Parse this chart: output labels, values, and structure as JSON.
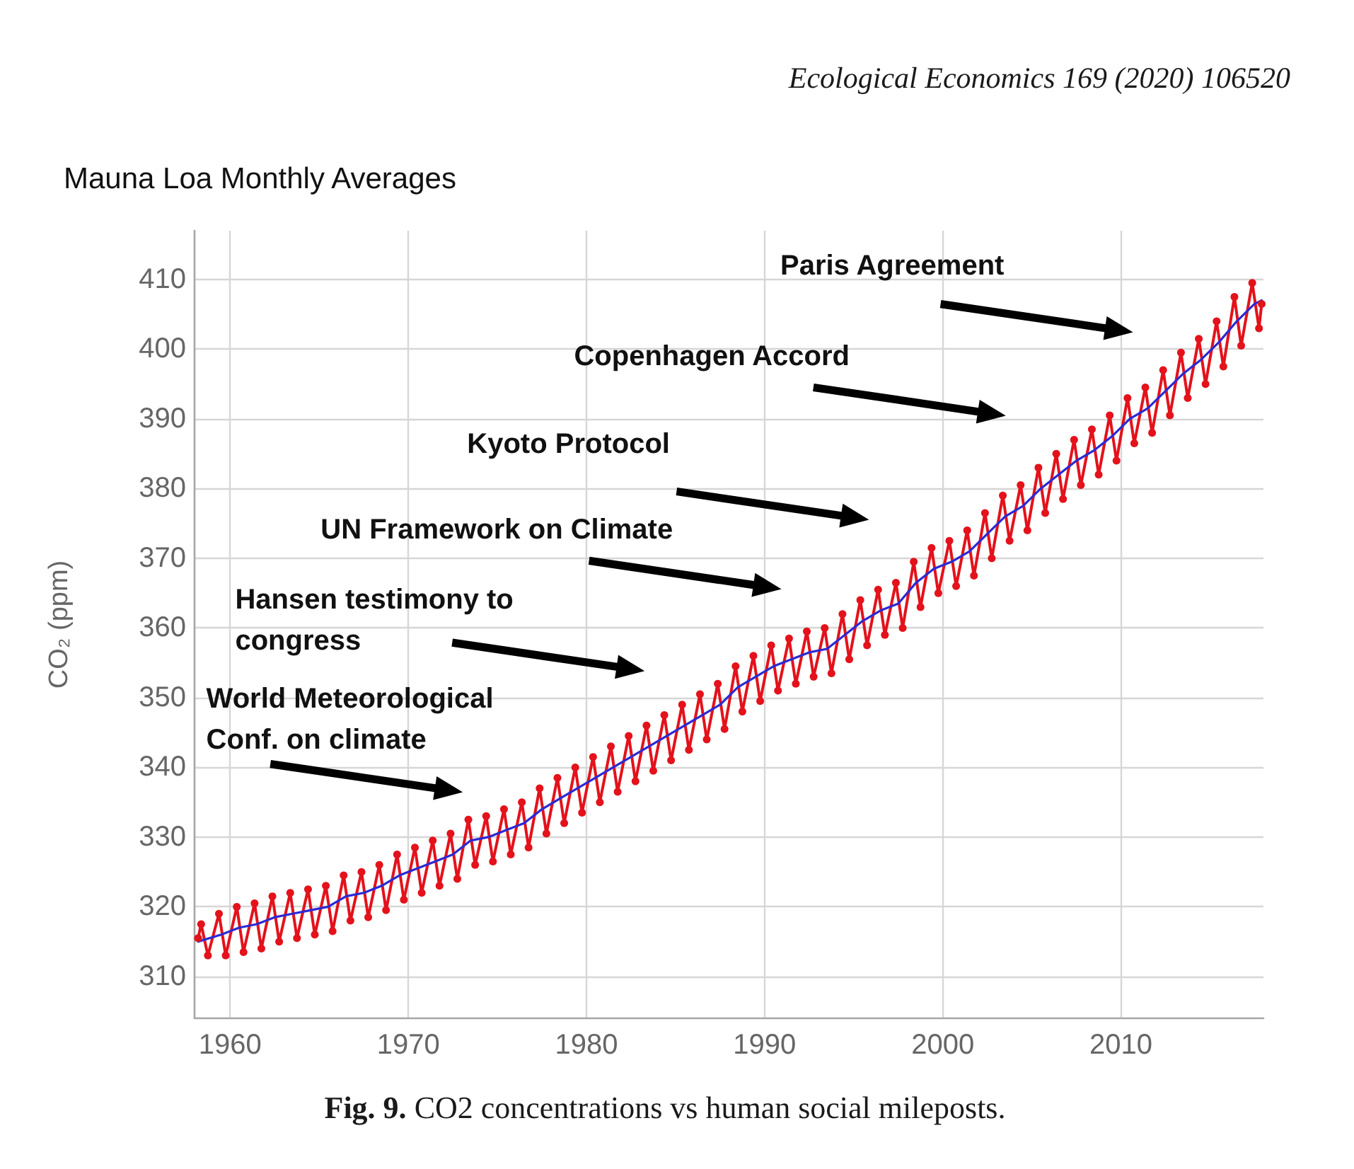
{
  "chart_data": {
    "type": "line",
    "title": "Mauna Loa Monthly Averages",
    "ylabel": "CO₂ (ppm)",
    "xlim": [
      1958,
      2018
    ],
    "xticks": [
      1960,
      1970,
      1980,
      1990,
      2000,
      2010
    ],
    "ylim": [
      304,
      417
    ],
    "yticks": [
      310,
      320,
      330,
      340,
      350,
      360,
      370,
      380,
      390,
      400,
      410
    ],
    "grid": true,
    "line_style": "solid",
    "series": [
      {
        "color": "#e3121b",
        "marker": "circle",
        "x": [
          1958.2,
          1958.37,
          1958.75,
          1959.37,
          1959.75,
          1960.37,
          1960.75,
          1961.37,
          1961.75,
          1962.37,
          1962.75,
          1963.37,
          1963.75,
          1964.37,
          1964.75,
          1965.37,
          1965.75,
          1966.37,
          1966.75,
          1967.37,
          1967.75,
          1968.37,
          1968.75,
          1969.37,
          1969.75,
          1970.37,
          1970.75,
          1971.37,
          1971.75,
          1972.37,
          1972.75,
          1973.37,
          1973.75,
          1974.37,
          1974.75,
          1975.37,
          1975.75,
          1976.37,
          1976.75,
          1977.37,
          1977.75,
          1978.37,
          1978.75,
          1979.37,
          1979.75,
          1980.37,
          1980.75,
          1981.37,
          1981.75,
          1982.37,
          1982.75,
          1983.37,
          1983.75,
          1984.37,
          1984.75,
          1985.37,
          1985.75,
          1986.37,
          1986.75,
          1987.37,
          1987.75,
          1988.37,
          1988.75,
          1989.37,
          1989.75,
          1990.37,
          1990.75,
          1991.37,
          1991.75,
          1992.37,
          1992.75,
          1993.37,
          1993.75,
          1994.37,
          1994.75,
          1995.37,
          1995.75,
          1996.37,
          1996.75,
          1997.37,
          1997.75,
          1998.37,
          1998.75,
          1999.37,
          1999.75,
          2000.37,
          2000.75,
          2001.37,
          2001.75,
          2002.37,
          2002.75,
          2003.37,
          2003.75,
          2004.37,
          2004.75,
          2005.37,
          2005.75,
          2006.37,
          2006.75,
          2007.37,
          2007.75,
          2008.37,
          2008.75,
          2009.37,
          2009.75,
          2010.37,
          2010.75,
          2011.37,
          2011.75,
          2012.37,
          2012.75,
          2013.37,
          2013.75,
          2014.37,
          2014.75,
          2015.37,
          2015.75,
          2016.37,
          2016.75,
          2017.37,
          2017.75,
          2017.9
        ],
        "values": [
          315.5,
          317.5,
          313,
          319,
          313,
          320,
          313.5,
          320.5,
          314,
          321.5,
          315,
          322,
          315.5,
          322.5,
          316,
          323,
          316.5,
          324.5,
          318,
          325,
          318.5,
          326,
          319.5,
          327.5,
          321,
          328.5,
          322,
          329.5,
          323,
          330.5,
          324,
          332.5,
          326,
          333,
          326.5,
          334,
          327.5,
          335,
          328.5,
          337,
          330.5,
          338.5,
          332,
          340,
          333.5,
          341.5,
          335,
          343,
          336.5,
          344.5,
          338,
          346,
          339.5,
          347.5,
          341,
          349,
          342.5,
          350.5,
          344,
          352,
          345.5,
          354.5,
          348,
          356,
          349.5,
          357.5,
          351,
          358.5,
          352,
          359.5,
          353,
          360,
          353.5,
          362,
          355.5,
          364,
          357.5,
          365.5,
          359,
          366.5,
          360,
          369.5,
          363,
          371.5,
          365,
          372.5,
          366,
          374,
          367.5,
          376.5,
          370,
          379,
          372.5,
          380.5,
          374,
          383,
          376.5,
          385,
          378.5,
          387,
          380.5,
          388.5,
          382,
          390.5,
          384,
          393,
          386.5,
          394.5,
          388,
          397,
          390.5,
          399.5,
          393,
          401.5,
          395,
          404,
          397.5,
          407.5,
          400.5,
          409.5,
          403,
          406.5
        ]
      },
      {
        "color": "#2a2ad4",
        "marker": "none",
        "x": [
          1958.2,
          1959.5,
          1960.5,
          1961.5,
          1962.5,
          1963.5,
          1964.5,
          1965.5,
          1966.5,
          1967.5,
          1968.5,
          1969.5,
          1970.5,
          1971.5,
          1972.5,
          1973.5,
          1974.5,
          1975.5,
          1976.5,
          1977.5,
          1978.5,
          1979.5,
          1980.5,
          1981.5,
          1982.5,
          1983.5,
          1984.5,
          1985.5,
          1986.5,
          1987.5,
          1988.5,
          1989.5,
          1990.5,
          1991.5,
          1992.5,
          1993.5,
          1994.5,
          1995.5,
          1996.5,
          1997.5,
          1998.5,
          1999.5,
          2000.5,
          2001.5,
          2002.5,
          2003.5,
          2004.5,
          2005.5,
          2006.5,
          2007.5,
          2008.5,
          2009.5,
          2010.5,
          2011.5,
          2012.5,
          2013.5,
          2014.5,
          2015.5,
          2016.5,
          2017.5,
          2017.9
        ],
        "values": [
          315,
          316,
          317,
          317.5,
          318.5,
          319,
          319.5,
          320,
          321.5,
          322,
          323,
          324.5,
          325.5,
          326.5,
          327.5,
          329.5,
          330,
          331,
          332,
          334,
          335.5,
          337,
          338.5,
          340,
          341.5,
          343,
          344.5,
          346,
          347.5,
          349,
          351.5,
          353,
          354.5,
          355.5,
          356.5,
          357,
          359,
          361,
          362.5,
          363.5,
          366.5,
          368.5,
          369.5,
          371,
          373.5,
          376,
          377.5,
          380,
          382,
          384,
          385.5,
          387.5,
          390,
          391.5,
          394,
          396.5,
          398.5,
          401,
          404,
          406.5,
          407
        ]
      }
    ],
    "annotations": [
      "Ecological Economics 169 (2020) 106520",
      "Paris Agreement",
      "Copenhagen Accord",
      "Kyoto Protocol",
      "UN Framework on Climate",
      "Hansen testimony to\ncongress",
      "World Meteorological\nConf. on climate",
      "Fig. 9. CO2 concentrations vs human social mileposts."
    ]
  }
}
